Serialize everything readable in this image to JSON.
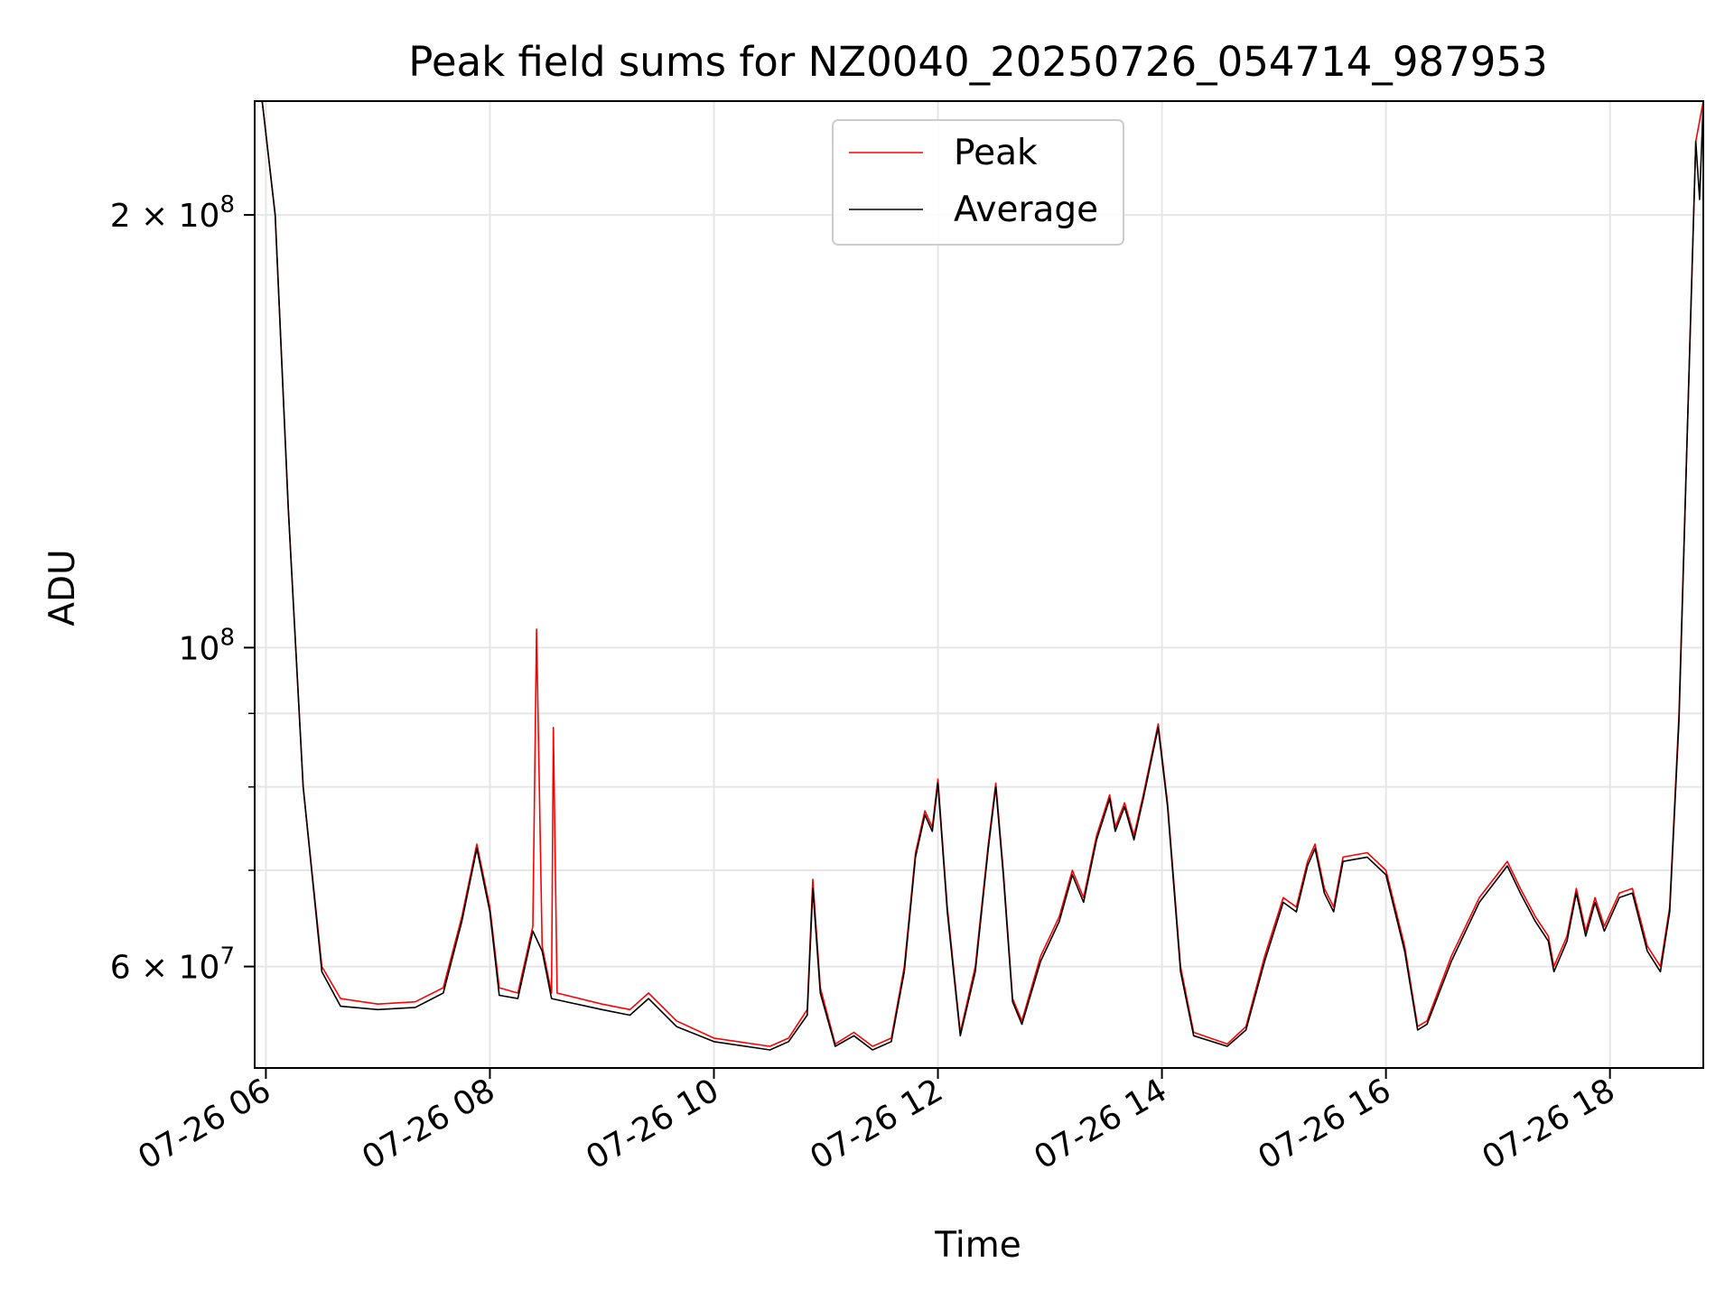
{
  "chart_data": {
    "type": "line",
    "title": "Peak field sums for NZ0040_20250726_054714_987953",
    "xlabel": "Time",
    "ylabel": "ADU",
    "y_scale": "log",
    "xlim": [
      "2025-07-26 05:54",
      "2025-07-26 18:50"
    ],
    "ylim": [
      51000000,
      240000000
    ],
    "x_ticks": [
      "07-26 06",
      "07-26 08",
      "07-26 10",
      "07-26 12",
      "07-26 14",
      "07-26 16",
      "07-26 18"
    ],
    "y_ticks": [
      {
        "label_main": "6 × 10",
        "label_exp": "7"
      },
      {
        "label_main": "10",
        "label_exp": "8"
      },
      {
        "label_main": "2 × 10",
        "label_exp": "8"
      }
    ],
    "grid": true,
    "legend_position": "upper center",
    "series": [
      {
        "name": "Peak",
        "color": "#ff0000",
        "points": [
          [
            "2025-07-26 05:58",
            240000000
          ],
          [
            "2025-07-26 06:05",
            200000000
          ],
          [
            "2025-07-26 06:12",
            125000000
          ],
          [
            "2025-07-26 06:20",
            80000000
          ],
          [
            "2025-07-26 06:30",
            60000000
          ],
          [
            "2025-07-26 06:40",
            57000000
          ],
          [
            "2025-07-26 07:00",
            56500000
          ],
          [
            "2025-07-26 07:20",
            56700000
          ],
          [
            "2025-07-26 07:35",
            58000000
          ],
          [
            "2025-07-26 07:45",
            65000000
          ],
          [
            "2025-07-26 07:53",
            73000000
          ],
          [
            "2025-07-26 08:00",
            66000000
          ],
          [
            "2025-07-26 08:05",
            58000000
          ],
          [
            "2025-07-26 08:15",
            57500000
          ],
          [
            "2025-07-26 08:23",
            64000000
          ],
          [
            "2025-07-26 08:25",
            103000000
          ],
          [
            "2025-07-26 08:28",
            62000000
          ],
          [
            "2025-07-26 08:33",
            57500000
          ],
          [
            "2025-07-26 08:34",
            88000000
          ],
          [
            "2025-07-26 08:36",
            57500000
          ],
          [
            "2025-07-26 09:00",
            56500000
          ],
          [
            "2025-07-26 09:15",
            56000000
          ],
          [
            "2025-07-26 09:25",
            57500000
          ],
          [
            "2025-07-26 09:40",
            55000000
          ],
          [
            "2025-07-26 10:00",
            53500000
          ],
          [
            "2025-07-26 10:30",
            52800000
          ],
          [
            "2025-07-26 10:40",
            53500000
          ],
          [
            "2025-07-26 10:50",
            56000000
          ],
          [
            "2025-07-26 10:53",
            69000000
          ],
          [
            "2025-07-26 10:57",
            58000000
          ],
          [
            "2025-07-26 11:05",
            53000000
          ],
          [
            "2025-07-26 11:15",
            54000000
          ],
          [
            "2025-07-26 11:25",
            52800000
          ],
          [
            "2025-07-26 11:35",
            53500000
          ],
          [
            "2025-07-26 11:42",
            60000000
          ],
          [
            "2025-07-26 11:48",
            72000000
          ],
          [
            "2025-07-26 11:53",
            77000000
          ],
          [
            "2025-07-26 11:57",
            75000000
          ],
          [
            "2025-07-26 12:00",
            81000000
          ],
          [
            "2025-07-26 12:05",
            66000000
          ],
          [
            "2025-07-26 12:12",
            54000000
          ],
          [
            "2025-07-26 12:20",
            60000000
          ],
          [
            "2025-07-26 12:27",
            73000000
          ],
          [
            "2025-07-26 12:31",
            80500000
          ],
          [
            "2025-07-26 12:35",
            70000000
          ],
          [
            "2025-07-26 12:40",
            57000000
          ],
          [
            "2025-07-26 12:45",
            55000000
          ],
          [
            "2025-07-26 12:55",
            61000000
          ],
          [
            "2025-07-26 13:05",
            65000000
          ],
          [
            "2025-07-26 13:12",
            70000000
          ],
          [
            "2025-07-26 13:18",
            67000000
          ],
          [
            "2025-07-26 13:25",
            74000000
          ],
          [
            "2025-07-26 13:32",
            79000000
          ],
          [
            "2025-07-26 13:35",
            75000000
          ],
          [
            "2025-07-26 13:40",
            78000000
          ],
          [
            "2025-07-26 13:45",
            74000000
          ],
          [
            "2025-07-26 13:50",
            79000000
          ],
          [
            "2025-07-26 13:58",
            88500000
          ],
          [
            "2025-07-26 14:03",
            78000000
          ],
          [
            "2025-07-26 14:10",
            60000000
          ],
          [
            "2025-07-26 14:17",
            54000000
          ],
          [
            "2025-07-26 14:35",
            53000000
          ],
          [
            "2025-07-26 14:45",
            54500000
          ],
          [
            "2025-07-26 14:55",
            61000000
          ],
          [
            "2025-07-26 15:05",
            67000000
          ],
          [
            "2025-07-26 15:12",
            66000000
          ],
          [
            "2025-07-26 15:18",
            71000000
          ],
          [
            "2025-07-26 15:22",
            73000000
          ],
          [
            "2025-07-26 15:27",
            68000000
          ],
          [
            "2025-07-26 15:32",
            66000000
          ],
          [
            "2025-07-26 15:37",
            71500000
          ],
          [
            "2025-07-26 15:50",
            72000000
          ],
          [
            "2025-07-26 16:00",
            70000000
          ],
          [
            "2025-07-26 16:10",
            62000000
          ],
          [
            "2025-07-26 16:17",
            54500000
          ],
          [
            "2025-07-26 16:22",
            55000000
          ],
          [
            "2025-07-26 16:35",
            61000000
          ],
          [
            "2025-07-26 16:50",
            67000000
          ],
          [
            "2025-07-26 17:05",
            71000000
          ],
          [
            "2025-07-26 17:12",
            68000000
          ],
          [
            "2025-07-26 17:20",
            65000000
          ],
          [
            "2025-07-26 17:27",
            63000000
          ],
          [
            "2025-07-26 17:30",
            60000000
          ],
          [
            "2025-07-26 17:37",
            63000000
          ],
          [
            "2025-07-26 17:42",
            68000000
          ],
          [
            "2025-07-26 17:47",
            63500000
          ],
          [
            "2025-07-26 17:52",
            67000000
          ],
          [
            "2025-07-26 17:57",
            64000000
          ],
          [
            "2025-07-26 18:05",
            67500000
          ],
          [
            "2025-07-26 18:12",
            68000000
          ],
          [
            "2025-07-26 18:20",
            62000000
          ],
          [
            "2025-07-26 18:27",
            60000000
          ],
          [
            "2025-07-26 18:32",
            66000000
          ],
          [
            "2025-07-26 18:37",
            90000000
          ],
          [
            "2025-07-26 18:42",
            150000000
          ],
          [
            "2025-07-26 18:46",
            225000000
          ],
          [
            "2025-07-26 18:50",
            240000000
          ]
        ]
      },
      {
        "name": "Average",
        "color": "#000000",
        "points": [
          [
            "2025-07-26 05:58",
            240000000
          ],
          [
            "2025-07-26 06:05",
            200000000
          ],
          [
            "2025-07-26 06:12",
            125000000
          ],
          [
            "2025-07-26 06:20",
            80000000
          ],
          [
            "2025-07-26 06:30",
            59500000
          ],
          [
            "2025-07-26 06:40",
            56300000
          ],
          [
            "2025-07-26 07:00",
            56000000
          ],
          [
            "2025-07-26 07:20",
            56200000
          ],
          [
            "2025-07-26 07:35",
            57500000
          ],
          [
            "2025-07-26 07:45",
            64500000
          ],
          [
            "2025-07-26 07:53",
            72500000
          ],
          [
            "2025-07-26 08:00",
            65500000
          ],
          [
            "2025-07-26 08:05",
            57300000
          ],
          [
            "2025-07-26 08:15",
            57000000
          ],
          [
            "2025-07-26 08:23",
            63500000
          ],
          [
            "2025-07-26 08:28",
            61500000
          ],
          [
            "2025-07-26 08:33",
            57000000
          ],
          [
            "2025-07-26 09:00",
            56000000
          ],
          [
            "2025-07-26 09:15",
            55500000
          ],
          [
            "2025-07-26 09:25",
            57000000
          ],
          [
            "2025-07-26 09:40",
            54500000
          ],
          [
            "2025-07-26 10:00",
            53200000
          ],
          [
            "2025-07-26 10:30",
            52500000
          ],
          [
            "2025-07-26 10:40",
            53200000
          ],
          [
            "2025-07-26 10:50",
            55500000
          ],
          [
            "2025-07-26 10:53",
            68000000
          ],
          [
            "2025-07-26 10:57",
            57500000
          ],
          [
            "2025-07-26 11:05",
            52800000
          ],
          [
            "2025-07-26 11:15",
            53700000
          ],
          [
            "2025-07-26 11:25",
            52500000
          ],
          [
            "2025-07-26 11:35",
            53200000
          ],
          [
            "2025-07-26 11:42",
            59500000
          ],
          [
            "2025-07-26 11:48",
            71500000
          ],
          [
            "2025-07-26 11:53",
            76500000
          ],
          [
            "2025-07-26 11:57",
            74500000
          ],
          [
            "2025-07-26 12:00",
            80500000
          ],
          [
            "2025-07-26 12:05",
            65500000
          ],
          [
            "2025-07-26 12:12",
            53700000
          ],
          [
            "2025-07-26 12:20",
            59500000
          ],
          [
            "2025-07-26 12:27",
            72500000
          ],
          [
            "2025-07-26 12:31",
            80000000
          ],
          [
            "2025-07-26 12:35",
            69500000
          ],
          [
            "2025-07-26 12:40",
            56700000
          ],
          [
            "2025-07-26 12:45",
            54700000
          ],
          [
            "2025-07-26 12:55",
            60500000
          ],
          [
            "2025-07-26 13:05",
            64500000
          ],
          [
            "2025-07-26 13:12",
            69500000
          ],
          [
            "2025-07-26 13:18",
            66500000
          ],
          [
            "2025-07-26 13:25",
            73500000
          ],
          [
            "2025-07-26 13:32",
            78500000
          ],
          [
            "2025-07-26 13:35",
            74500000
          ],
          [
            "2025-07-26 13:40",
            77500000
          ],
          [
            "2025-07-26 13:45",
            73500000
          ],
          [
            "2025-07-26 13:50",
            78500000
          ],
          [
            "2025-07-26 13:58",
            88000000
          ],
          [
            "2025-07-26 14:03",
            77500000
          ],
          [
            "2025-07-26 14:10",
            59500000
          ],
          [
            "2025-07-26 14:17",
            53700000
          ],
          [
            "2025-07-26 14:35",
            52800000
          ],
          [
            "2025-07-26 14:45",
            54200000
          ],
          [
            "2025-07-26 14:55",
            60500000
          ],
          [
            "2025-07-26 15:05",
            66500000
          ],
          [
            "2025-07-26 15:12",
            65500000
          ],
          [
            "2025-07-26 15:18",
            70500000
          ],
          [
            "2025-07-26 15:22",
            72500000
          ],
          [
            "2025-07-26 15:27",
            67500000
          ],
          [
            "2025-07-26 15:32",
            65500000
          ],
          [
            "2025-07-26 15:37",
            71000000
          ],
          [
            "2025-07-26 15:50",
            71500000
          ],
          [
            "2025-07-26 16:00",
            69500000
          ],
          [
            "2025-07-26 16:10",
            61500000
          ],
          [
            "2025-07-26 16:17",
            54200000
          ],
          [
            "2025-07-26 16:22",
            54700000
          ],
          [
            "2025-07-26 16:35",
            60500000
          ],
          [
            "2025-07-26 16:50",
            66500000
          ],
          [
            "2025-07-26 17:05",
            70500000
          ],
          [
            "2025-07-26 17:12",
            67500000
          ],
          [
            "2025-07-26 17:20",
            64500000
          ],
          [
            "2025-07-26 17:27",
            62500000
          ],
          [
            "2025-07-26 17:30",
            59500000
          ],
          [
            "2025-07-26 17:37",
            62500000
          ],
          [
            "2025-07-26 17:42",
            67500000
          ],
          [
            "2025-07-26 17:47",
            63000000
          ],
          [
            "2025-07-26 17:52",
            66500000
          ],
          [
            "2025-07-26 17:57",
            63500000
          ],
          [
            "2025-07-26 18:05",
            67000000
          ],
          [
            "2025-07-26 18:12",
            67500000
          ],
          [
            "2025-07-26 18:20",
            61500000
          ],
          [
            "2025-07-26 18:27",
            59500000
          ],
          [
            "2025-07-26 18:32",
            65500000
          ],
          [
            "2025-07-26 18:37",
            89000000
          ],
          [
            "2025-07-26 18:42",
            150000000
          ],
          [
            "2025-07-26 18:46",
            225000000
          ],
          [
            "2025-07-26 18:48",
            205000000
          ],
          [
            "2025-07-26 18:50",
            240000000
          ]
        ]
      }
    ]
  }
}
